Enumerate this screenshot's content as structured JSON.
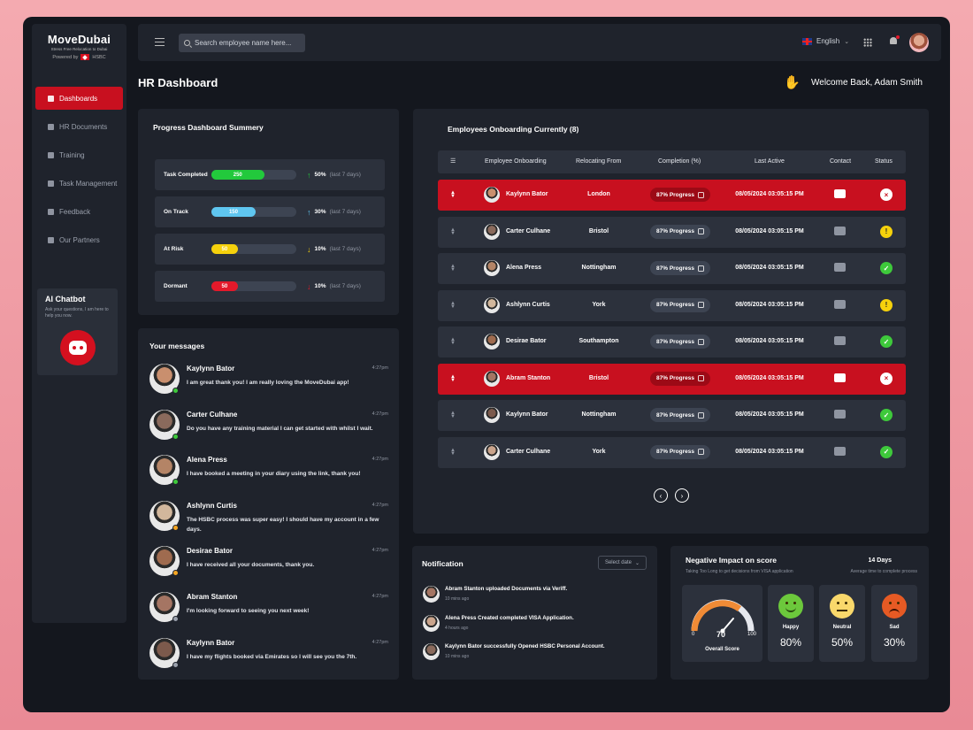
{
  "brand": {
    "title": "MoveDubai",
    "tagline": "Stress Free Relocation to Dubai",
    "powered": "Powered by",
    "partner": "HSBC"
  },
  "sidebar": {
    "items": [
      {
        "label": "Dashboards"
      },
      {
        "label": "HR Documents"
      },
      {
        "label": "Training"
      },
      {
        "label": "Task Management"
      },
      {
        "label": "Feedback"
      },
      {
        "label": "Our Partners"
      }
    ]
  },
  "chatbot": {
    "title": "AI Chatbot",
    "desc": "Ask your questions, I am here to help you now."
  },
  "topbar": {
    "search_placeholder": "Search employee name here...",
    "language": "English"
  },
  "page": {
    "title": "HR Dashboard",
    "welcome": "Welcome Back, Adam Smith"
  },
  "progress": {
    "title": "Progress Dashboard Summery",
    "rows": [
      {
        "label": "Task Completed",
        "value": "250",
        "fraction": 0.62,
        "color": "#22c93c",
        "pct": "50%",
        "note": "(last 7 days)",
        "dir": "up"
      },
      {
        "label": "On Track",
        "value": "150",
        "fraction": 0.52,
        "color": "#5fc6f0",
        "pct": "30%",
        "note": "(last 7 days)",
        "dir": "up"
      },
      {
        "label": "At Risk",
        "value": "50",
        "fraction": 0.31,
        "color": "#f5d10c",
        "pct": "10%",
        "note": "(last 7 days)",
        "dir": "down"
      },
      {
        "label": "Dormant",
        "value": "50",
        "fraction": 0.31,
        "color": "#e4192a",
        "pct": "10%",
        "note": "(last 7 days)",
        "dir": "down"
      }
    ]
  },
  "messages": {
    "title": "Your messages",
    "items": [
      {
        "name": "Kaylynn Bator",
        "time": "4:27pm",
        "text": "I am great thank you! I am really loving the MoveDubai app!",
        "status": "#3ec93b"
      },
      {
        "name": "Carter Culhane",
        "time": "4:27pm",
        "text": "Do you have any training material I can get started with whilst I wait.",
        "status": "#3ec93b"
      },
      {
        "name": "Alena Press",
        "time": "4:27pm",
        "text": "I have booked a meeting in your diary using the link, thank you!",
        "status": "#3ec93b"
      },
      {
        "name": "Ashlynn Curtis",
        "time": "4:27pm",
        "text": "The HSBC process was super easy! I should have my account in a few days.",
        "status": "#f5a623"
      },
      {
        "name": "Desirae Bator",
        "time": "4:27pm",
        "text": "I have received all your documents, thank you.",
        "status": "#f5a623"
      },
      {
        "name": "Abram Stanton",
        "time": "4:27pm",
        "text": "I'm looking forward to seeing you next week!",
        "status": "#9aa0ac"
      },
      {
        "name": "Kaylynn Bator",
        "time": "4:27pm",
        "text": "I have my flights booked via Emirates so I will see you the 7th.",
        "status": "#9aa0ac"
      }
    ]
  },
  "employees": {
    "title": "Employees Onboarding Currently (8)",
    "headers": {
      "name": "Employee Onboarding",
      "from": "Relocating From",
      "completion": "Completion (%)",
      "active": "Last Active",
      "contact": "Contact",
      "status": "Status"
    },
    "rows": [
      {
        "name": "Kaylynn Bator",
        "from": "London",
        "progress": "87% Progress",
        "active": "08/05/2024 03:05:15 PM",
        "status": "x",
        "hl": true
      },
      {
        "name": "Carter Culhane",
        "from": "Bristol",
        "progress": "87% Progress",
        "active": "08/05/2024 03:05:15 PM",
        "status": "warn",
        "hl": false
      },
      {
        "name": "Alena Press",
        "from": "Nottingham",
        "progress": "87% Progress",
        "active": "08/05/2024 03:05:15 PM",
        "status": "ok",
        "hl": false
      },
      {
        "name": "Ashlynn Curtis",
        "from": "York",
        "progress": "87% Progress",
        "active": "08/05/2024 03:05:15 PM",
        "status": "warn",
        "hl": false
      },
      {
        "name": "Desirae Bator",
        "from": "Southampton",
        "progress": "87% Progress",
        "active": "08/05/2024 03:05:15 PM",
        "status": "ok",
        "hl": false
      },
      {
        "name": "Abram Stanton",
        "from": "Bristol",
        "progress": "87% Progress",
        "active": "08/05/2024 03:05:15 PM",
        "status": "x",
        "hl": true
      },
      {
        "name": "Kaylynn Bator",
        "from": "Nottingham",
        "progress": "87% Progress",
        "active": "08/05/2024 03:05:15 PM",
        "status": "ok",
        "hl": false
      },
      {
        "name": "Carter Culhane",
        "from": "York",
        "progress": "87% Progress",
        "active": "08/05/2024 03:05:15 PM",
        "status": "ok",
        "hl": false
      }
    ]
  },
  "notifications": {
    "title": "Notification",
    "select": "Select date",
    "items": [
      {
        "text": "Abram Stanton uploaded Documents via Veriff.",
        "ago": "10 mins ago"
      },
      {
        "text": "Alena Press Created completed VISA Application.",
        "ago": "4 hours ago"
      },
      {
        "text": "Kaylynn Bator successfully Opened HSBC Personal Account.",
        "ago": "10 mins ago"
      }
    ]
  },
  "score": {
    "title": "Negative Impact on score",
    "subtitle": "Taking Too Long to get decisions from VISA application",
    "days": "14 Days",
    "days_desc": "Average time to complete process",
    "gauge": {
      "min": "0",
      "max": "100",
      "value": "70",
      "label": "Overall Score"
    },
    "moods": [
      {
        "label": "Happy",
        "value": "80%"
      },
      {
        "label": "Neutral",
        "value": "50%"
      },
      {
        "label": "Sad",
        "value": "30%"
      }
    ]
  }
}
